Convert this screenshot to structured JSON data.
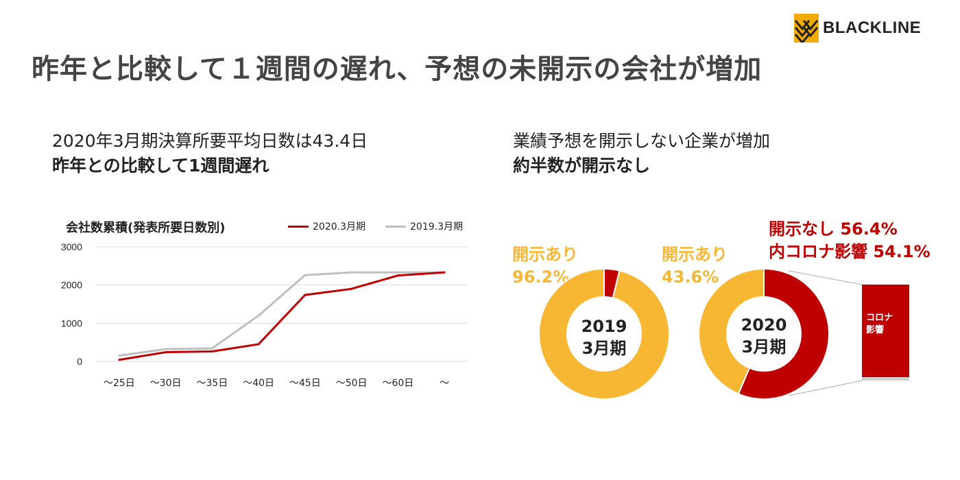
{
  "logo": {
    "text": "BLACKLINE",
    "icon": "blackline-chevron-logo",
    "color": "#f2a900"
  },
  "title": "昨年と比較して１週間の遅れ、予想の未開示の会社が増加",
  "left": {
    "line1": "2020年3月期決算所要平均日数は43.4日",
    "line2": "昨年との比較して1週間遅れ"
  },
  "right": {
    "line1": "業績予想を開示しない企業が増加",
    "line2": "約半数が開示なし"
  },
  "chart_data": [
    {
      "type": "line",
      "title": "会社数累積(発表所要日数別)",
      "categories": [
        "～25日",
        "～30日",
        "～35日",
        "～40日",
        "～45日",
        "～50日",
        "～60日",
        "～"
      ],
      "series": [
        {
          "name": "2020.3月期",
          "color": "#c00000",
          "values": [
            40,
            240,
            260,
            450,
            1740,
            1900,
            2250,
            2330
          ]
        },
        {
          "name": "2019.3月期",
          "color": "#bfbfbf",
          "values": [
            150,
            320,
            340,
            1200,
            2260,
            2330,
            2330,
            2330
          ]
        }
      ],
      "ylim": [
        0,
        3000
      ],
      "yticks": [
        0,
        1000,
        2000,
        3000
      ],
      "grid": true,
      "legend": "top-right"
    },
    {
      "type": "pie",
      "variant": "donut",
      "center_label": [
        "2019",
        "3月期"
      ],
      "slices": [
        {
          "label": "開示なし",
          "value": 3.8,
          "color": "#c00000"
        },
        {
          "label": "開示あり",
          "value": 96.2,
          "color": "#f7b733"
        }
      ],
      "label_text": [
        "開示あり",
        "96.2%"
      ]
    },
    {
      "type": "pie",
      "variant": "donut",
      "center_label": [
        "2020",
        "3月期"
      ],
      "slices": [
        {
          "label": "開示なし",
          "value": 56.4,
          "color": "#c00000"
        },
        {
          "label": "開示あり",
          "value": 43.6,
          "color": "#f7b733"
        }
      ],
      "label_text": [
        "開示あり",
        "43.6%"
      ],
      "annotation": [
        "開示なし 56.4%",
        "内コロナ影響 54.1%"
      ],
      "callout": {
        "label": [
          "コロナ",
          "影響"
        ],
        "share_of_nondisclosure": 0.959
      }
    }
  ]
}
